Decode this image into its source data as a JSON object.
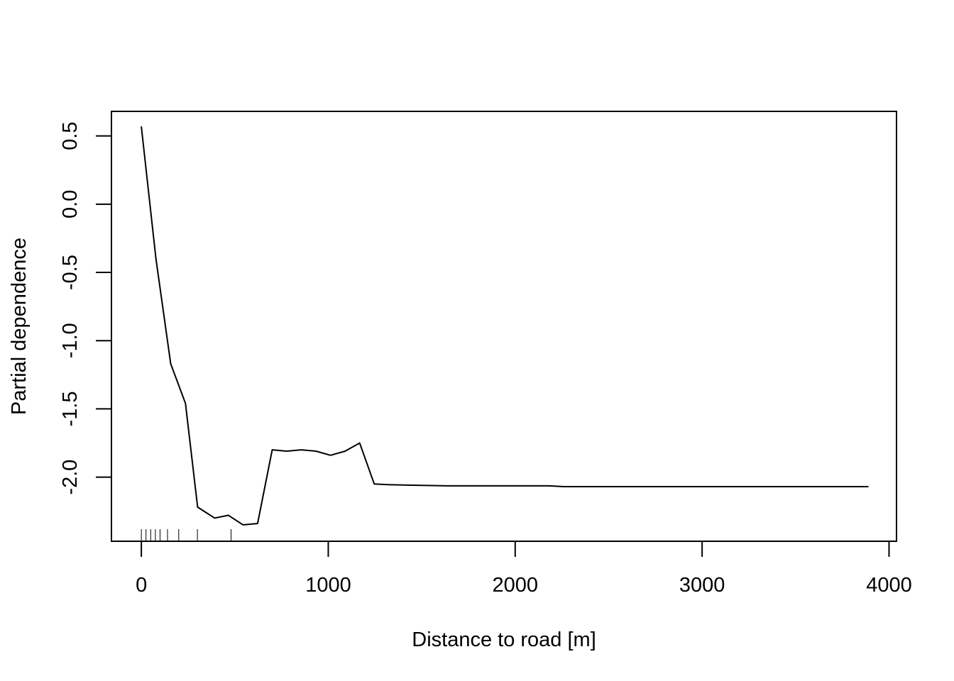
{
  "chart_data": {
    "type": "line",
    "title": "",
    "xlabel": "Distance to road [m]",
    "ylabel": "Partial dependence",
    "xlim": [
      -160,
      4040
    ],
    "ylim": [
      -2.47,
      0.68
    ],
    "x_ticks": [
      0,
      1000,
      2000,
      3000,
      4000
    ],
    "x_tick_labels": [
      "0",
      "1000",
      "2000",
      "3000",
      "4000"
    ],
    "y_ticks": [
      0.5,
      0.0,
      -0.5,
      -1.0,
      -1.5,
      -2.0
    ],
    "y_tick_labels": [
      "0.5",
      "0.0",
      "-0.5",
      "-1.0",
      "-1.5",
      "-2.0"
    ],
    "grid": false,
    "series": [
      {
        "name": "Partial dependence",
        "x": [
          0,
          78,
          157,
          236,
          301,
          392,
          466,
          544,
          622,
          700,
          778,
          856,
          934,
          1012,
          1090,
          1168,
          1246,
          1324,
          1402,
          1480,
          1558,
          1636,
          1714,
          1792,
          1870,
          1948,
          2026,
          2104,
          2182,
          2260,
          2338,
          2416,
          2494,
          2572,
          2650,
          2728,
          2806,
          2884,
          2962,
          3040,
          3118,
          3196,
          3274,
          3352,
          3430,
          3508,
          3586,
          3664,
          3742,
          3820,
          3890
        ],
        "y": [
          0.57,
          -0.4,
          -1.17,
          -1.46,
          -2.22,
          -2.3,
          -2.28,
          -2.35,
          -2.34,
          -1.8,
          -1.81,
          -1.8,
          -1.81,
          -1.84,
          -1.81,
          -1.75,
          -2.05,
          -2.055,
          -2.058,
          -2.06,
          -2.062,
          -2.064,
          -2.064,
          -2.064,
          -2.064,
          -2.064,
          -2.064,
          -2.064,
          -2.064,
          -2.07,
          -2.07,
          -2.07,
          -2.07,
          -2.07,
          -2.07,
          -2.07,
          -2.07,
          -2.07,
          -2.07,
          -2.07,
          -2.07,
          -2.07,
          -2.07,
          -2.07,
          -2.07,
          -2.07,
          -2.07,
          -2.07,
          -2.07,
          -2.07,
          -2.07
        ]
      }
    ],
    "rug": [
      0,
      25,
      50,
      75,
      100,
      140,
      200,
      300,
      480
    ]
  }
}
